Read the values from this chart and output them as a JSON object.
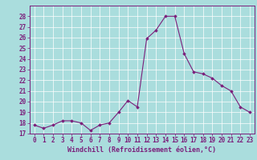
{
  "x": [
    0,
    1,
    2,
    3,
    4,
    5,
    6,
    7,
    8,
    9,
    10,
    11,
    12,
    13,
    14,
    15,
    16,
    17,
    18,
    19,
    20,
    21,
    22,
    23
  ],
  "y": [
    17.8,
    17.5,
    17.8,
    18.2,
    18.2,
    18.0,
    17.3,
    17.8,
    18.0,
    19.0,
    20.1,
    19.5,
    25.9,
    26.7,
    28.0,
    28.0,
    24.5,
    22.8,
    22.6,
    22.2,
    21.5,
    21.0,
    19.5,
    19.0
  ],
  "line_color": "#7B1F7B",
  "marker": "D",
  "marker_size": 1.8,
  "bg_color": "#aadddd",
  "grid_color": "#ffffff",
  "xlabel": "Windchill (Refroidissement éolien,°C)",
  "ylabel": "",
  "ylim": [
    17,
    29
  ],
  "xlim": [
    -0.5,
    23.5
  ],
  "yticks": [
    17,
    18,
    19,
    20,
    21,
    22,
    23,
    24,
    25,
    26,
    27,
    28
  ],
  "xticks": [
    0,
    1,
    2,
    3,
    4,
    5,
    6,
    7,
    8,
    9,
    10,
    11,
    12,
    13,
    14,
    15,
    16,
    17,
    18,
    19,
    20,
    21,
    22,
    23
  ],
  "label_color": "#7B1F7B",
  "tick_color": "#7B1F7B",
  "axis_color": "#7B1F7B",
  "font_size": 5.5,
  "xlabel_fontsize": 6.0
}
